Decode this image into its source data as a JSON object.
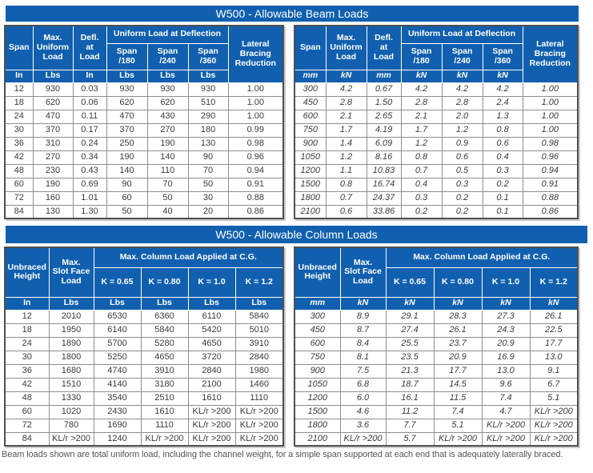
{
  "colors": {
    "header_blue": "#1160AF",
    "grid_gray": "#8E8E8E",
    "outer_border": "#4F4F4F"
  },
  "beam": {
    "title": "W500 - Allowable Beam Loads",
    "headers": {
      "span": "Span",
      "max_uniform_load": "Max.\nUniform\nLoad",
      "defl_at_load": "Defl.\nat\nLoad",
      "uniform_load_at_deflection": "Uniform Load at Deflection",
      "span_180": "Span\n/180",
      "span_240": "Span\n/240",
      "span_360": "Span\n/360",
      "lateral_bracing_reduction": "Lateral\nBracing\nReduction"
    },
    "imperial": {
      "units": [
        "In",
        "Lbs",
        "In",
        "Lbs",
        "Lbs",
        "Lbs"
      ],
      "rows": [
        [
          "12",
          "930",
          "0.03",
          "930",
          "930",
          "930",
          "1.00"
        ],
        [
          "18",
          "620",
          "0.06",
          "620",
          "620",
          "510",
          "1.00"
        ],
        [
          "24",
          "470",
          "0.11",
          "470",
          "430",
          "290",
          "1.00"
        ],
        [
          "30",
          "370",
          "0.17",
          "370",
          "270",
          "180",
          "0.99"
        ],
        [
          "36",
          "310",
          "0.24",
          "250",
          "190",
          "130",
          "0.98"
        ],
        [
          "42",
          "270",
          "0.34",
          "190",
          "140",
          "90",
          "0.96"
        ],
        [
          "48",
          "230",
          "0.43",
          "140",
          "110",
          "70",
          "0.94"
        ],
        [
          "60",
          "190",
          "0.69",
          "90",
          "70",
          "50",
          "0.91"
        ],
        [
          "72",
          "160",
          "1.01",
          "60",
          "50",
          "30",
          "0.88"
        ],
        [
          "84",
          "130",
          "1.30",
          "50",
          "40",
          "20",
          "0.86"
        ]
      ]
    },
    "metric": {
      "units": [
        "mm",
        "kN",
        "mm",
        "kN",
        "kN",
        "kN"
      ],
      "rows": [
        [
          "300",
          "4.2",
          "0.67",
          "4.2",
          "4.2",
          "4.2",
          "1.00"
        ],
        [
          "450",
          "2.8",
          "1.50",
          "2.8",
          "2.8",
          "2.4",
          "1.00"
        ],
        [
          "600",
          "2.1",
          "2.65",
          "2.1",
          "2.0",
          "1.3",
          "1.00"
        ],
        [
          "750",
          "1.7",
          "4.19",
          "1.7",
          "1.2",
          "0.8",
          "1.00"
        ],
        [
          "900",
          "1.4",
          "6.09",
          "1.2",
          "0.9",
          "0.6",
          "0.98"
        ],
        [
          "1050",
          "1.2",
          "8.16",
          "0.8",
          "0.6",
          "0.4",
          "0.96"
        ],
        [
          "1200",
          "1.1",
          "10.83",
          "0.7",
          "0.5",
          "0.3",
          "0.94"
        ],
        [
          "1500",
          "0.8",
          "16.74",
          "0.4",
          "0.3",
          "0.2",
          "0.91"
        ],
        [
          "1800",
          "0.7",
          "24.37",
          "0.3",
          "0.2",
          "0.1",
          "0.88"
        ],
        [
          "2100",
          "0.6",
          "33.86",
          "0.2",
          "0.2",
          "0.1",
          "0.86"
        ]
      ]
    }
  },
  "column": {
    "title": "W500 - Allowable Column Loads",
    "headers": {
      "unbraced_height": "Unbraced\nHeight",
      "max_slot_face_load": "Max.\nSlot Face\nLoad",
      "max_column_load_cg": "Max. Column Load Applied at C.G.",
      "k_065": "K = 0.65",
      "k_080": "K = 0.80",
      "k_10": "K = 1.0",
      "k_12": "K = 1.2"
    },
    "imperial": {
      "units": [
        "In",
        "Lbs",
        "Lbs",
        "Lbs",
        "Lbs",
        "Lbs"
      ],
      "rows": [
        [
          "12",
          "2010",
          "6530",
          "6360",
          "6110",
          "5840"
        ],
        [
          "18",
          "1950",
          "6140",
          "5840",
          "5420",
          "5010"
        ],
        [
          "24",
          "1890",
          "5700",
          "5280",
          "4650",
          "3910"
        ],
        [
          "30",
          "1800",
          "5250",
          "4650",
          "3720",
          "2840"
        ],
        [
          "36",
          "1680",
          "4740",
          "3910",
          "2840",
          "1980"
        ],
        [
          "42",
          "1510",
          "4140",
          "3180",
          "2100",
          "1460"
        ],
        [
          "48",
          "1330",
          "3540",
          "2510",
          "1610",
          "1110"
        ],
        [
          "60",
          "1020",
          "2430",
          "1610",
          "KL/r >200",
          "KL/r >200"
        ],
        [
          "72",
          "780",
          "1690",
          "1110",
          "KL/r >200",
          "KL/r >200"
        ],
        [
          "84",
          "KL/r >200",
          "1240",
          "KL/r >200",
          "KL/r >200",
          "KL/r >200"
        ]
      ]
    },
    "metric": {
      "units": [
        "mm",
        "kN",
        "kN",
        "kN",
        "kN",
        "kN"
      ],
      "rows": [
        [
          "300",
          "8.9",
          "29.1",
          "28.3",
          "27.3",
          "26.1"
        ],
        [
          "450",
          "8.7",
          "27.4",
          "26.1",
          "24.3",
          "22.5"
        ],
        [
          "600",
          "8.4",
          "25.5",
          "23.7",
          "20.9",
          "17.7"
        ],
        [
          "750",
          "8.1",
          "23.5",
          "20.9",
          "16.9",
          "13.0"
        ],
        [
          "900",
          "7.5",
          "21.3",
          "17.7",
          "13.0",
          "9.1"
        ],
        [
          "1050",
          "6.8",
          "18.7",
          "14.5",
          "9.6",
          "6.7"
        ],
        [
          "1200",
          "6.0",
          "16.1",
          "11.5",
          "7.4",
          "5.1"
        ],
        [
          "1500",
          "4.6",
          "11.2",
          "7.4",
          "4.7",
          "KL/r >200"
        ],
        [
          "1800",
          "3.6",
          "7.7",
          "5.1",
          "KL/r >200",
          "KL/r >200"
        ],
        [
          "2100",
          "KL/r >200",
          "5.7",
          "KL/r >200",
          "KL/r >200",
          "KL/r >200"
        ]
      ]
    }
  },
  "footer": {
    "note": "Beam loads shown are total uniform load, including the channel weight, for a simple span supported at each end that is adequately laterally braced."
  }
}
